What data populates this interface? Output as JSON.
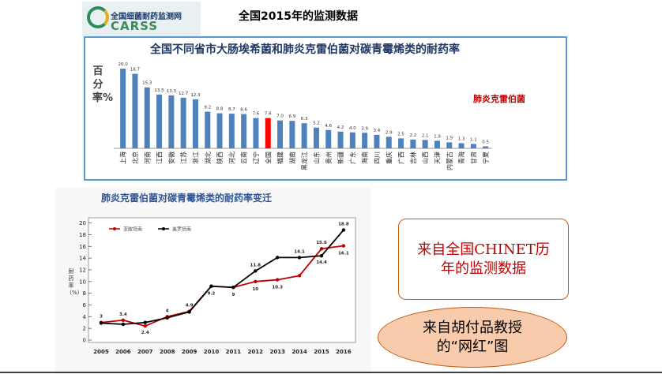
{
  "logo": {
    "name": "全国细菌耐药监测网",
    "acronym": "CARSS"
  },
  "page_title": "全国2015年的监测数据",
  "chart_data": [
    {
      "type": "bar",
      "title": "全国不同省市大肠埃希菌和肺炎克雷伯菌对碳青霉烯类的耐药率",
      "ylabel": "百分率%",
      "series_label": "肺炎克雷伯菌",
      "categories": [
        "上海",
        "北京",
        "河南",
        "江西",
        "安徽",
        "江苏",
        "浙江",
        "湖北",
        "陕西",
        "河北",
        "云南",
        "辽宁",
        "全国",
        "福建",
        "湖南",
        "黑龙江",
        "山东",
        "贵州",
        "新疆",
        "广东",
        "海南",
        "四川",
        "重庆",
        "广西",
        "吉林",
        "山西",
        "天津",
        "内蒙古",
        "青海",
        "甘肃",
        "宁夏"
      ],
      "values": [
        20.0,
        18.7,
        15.3,
        13.5,
        13.3,
        12.7,
        12.3,
        9.2,
        8.8,
        8.7,
        8.6,
        7.6,
        7.6,
        7.0,
        6.9,
        6.3,
        5.2,
        4.6,
        4.2,
        4.0,
        3.9,
        3.4,
        2.9,
        2.5,
        2.2,
        2.1,
        1.9,
        1.5,
        1.3,
        1.1,
        0.5
      ],
      "value_labels": [
        "20.0",
        "18.7",
        "15.3",
        "13.5",
        "13.3",
        "12.7",
        "12.3",
        "9.2",
        "8.8",
        "8.7",
        "8.6",
        "7.6",
        "7.6",
        "7.0",
        "6.9",
        "6.3",
        "5.2",
        "4.6",
        "4.2",
        "4.0",
        "3.9",
        "3.4",
        "2.9",
        "2.5",
        "2.2",
        "2.1",
        "1.9",
        "1.5",
        "1.3",
        "1.1",
        "0.5"
      ],
      "highlight_category": "全国",
      "colors": {
        "bar": "#4f81bd",
        "highlight": "#ff0000"
      }
    },
    {
      "type": "line",
      "title": "肺炎克雷伯菌对碳青霉烯类的耐药率变迁",
      "ylabel": "耐药率（%）",
      "x": [
        "2005",
        "2006",
        "2007",
        "2008",
        "2009",
        "2010",
        "2011",
        "2012",
        "2013",
        "2014",
        "2015",
        "2016"
      ],
      "ylim": [
        0,
        20
      ],
      "yticks": [
        0,
        2,
        4,
        6,
        8,
        10,
        12,
        14,
        16,
        18,
        20
      ],
      "series": [
        {
          "name": "亚胺培南",
          "color": "#c00000",
          "values": [
            3,
            3.4,
            2.4,
            4,
            4.9,
            9.2,
            9,
            10,
            10.3,
            11,
            15.6,
            16.1
          ],
          "labels": [
            "3",
            "3.4",
            "2.4",
            "4",
            "4.9",
            "9.2",
            "9",
            "10",
            "10.3",
            "",
            "15.6",
            "16.1"
          ]
        },
        {
          "name": "美罗培南",
          "color": "#000000",
          "values": [
            2.9,
            2.7,
            3,
            3.8,
            4.8,
            9.2,
            9,
            11.8,
            14.1,
            14.1,
            14.4,
            18.8
          ],
          "labels": [
            "",
            "",
            "",
            "",
            "",
            "",
            "",
            "11.8",
            "",
            "14.1",
            "14.4",
            "18.8"
          ]
        }
      ]
    }
  ],
  "callouts": {
    "chinet": "来自全国CHINET历年的监测数据",
    "hu": "来自胡付品教授的“网红”图"
  }
}
